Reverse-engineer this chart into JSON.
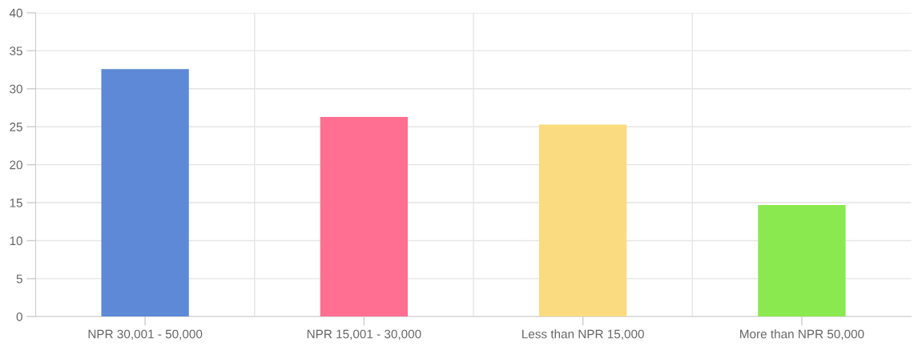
{
  "chart_data": {
    "type": "bar",
    "categories": [
      "NPR 30,001 - 50,000",
      "NPR 15,001 - 30,000",
      "Less than NPR 15,000",
      "More than NPR 50,000"
    ],
    "values": [
      32.6,
      26.3,
      25.3,
      14.7
    ],
    "colors": [
      "#5d89d6",
      "#fe6f92",
      "#fadb80",
      "#8ae94f"
    ],
    "ylim": [
      0,
      40
    ],
    "yticks": [
      0,
      5,
      10,
      15,
      20,
      25,
      30,
      35,
      40
    ],
    "grid": true,
    "legend": false
  }
}
